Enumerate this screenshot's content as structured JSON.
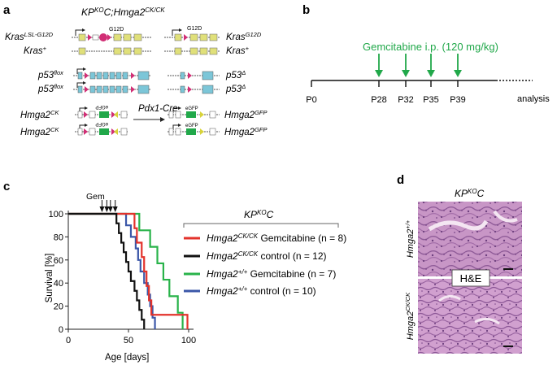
{
  "panels": {
    "a": {
      "letter": "a",
      "title_base": "KP",
      "title_sup1": "KO",
      "title_mid": "C;Hmga2",
      "title_sup2": "CK/CK",
      "kras_lsl_base": "Kras",
      "kras_lsl_sup": "LSL-G12D",
      "kras_plus_base": "Kras",
      "kras_plus_sup": "+",
      "g12d_label": "G12D",
      "kras_g12d_base": "Kras",
      "kras_g12d_sup": "G12D",
      "p53flox_base": "p53",
      "p53flox_sup": "flox",
      "p53delta_base": "p53",
      "p53delta_sup": "Δ",
      "hmga2ck_base": "Hmga2",
      "hmga2ck_sup": "CK",
      "hmga2gfp_base": "Hmga2",
      "hmga2gfp_sup": "GFP",
      "egfp_label": "eGFP",
      "cre_label": "Pdx1-Cre"
    },
    "b": {
      "letter": "b",
      "drug_label": "Gemcitabine i.p. (120 mg/kg)",
      "timepoints": [
        "P0",
        "P28",
        "P32",
        "P35",
        "P39"
      ],
      "end_label": "analysis",
      "arrow_color": "#21a84a"
    },
    "c": {
      "letter": "c",
      "gem_label": "Gem",
      "legend_title_base": "KP",
      "legend_title_sup": "KO",
      "legend_title_end": "C",
      "legend": [
        {
          "gene": "Hmga2",
          "sup": "CK/CK",
          "rest": " Gemcitabine (n = 8)",
          "color": "#e3322b"
        },
        {
          "gene": "Hmga2",
          "sup": "CK/CK",
          "rest": " control (n = 12)",
          "color": "#111111"
        },
        {
          "gene": "Hmga2",
          "sup": "+/+",
          "rest": " Gemcitabine (n = 7)",
          "color": "#29b34a"
        },
        {
          "gene": "Hmga2",
          "sup": "+/+",
          "rest": " control (n = 10)",
          "color": "#3b57a8"
        }
      ]
    },
    "d": {
      "letter": "d",
      "title_base": "KP",
      "title_sup": "KO",
      "title_end": "C",
      "top_label_base": "Hmga2",
      "top_label_sup": "+/+",
      "bottom_label_base": "Hmga2",
      "bottom_label_sup": "CK/CK",
      "stain_label": "H&E"
    }
  },
  "chart_data": {
    "type": "line",
    "step": true,
    "xlabel": "Age [days]",
    "ylabel": "Survival [%]",
    "xlim": [
      0,
      100
    ],
    "ylim": [
      0,
      100
    ],
    "xticks": [
      0,
      50,
      100
    ],
    "yticks": [
      0,
      20,
      40,
      60,
      80,
      100
    ],
    "gem_days": [
      28,
      32,
      35,
      39
    ],
    "series": [
      {
        "name": "Hmga2 CK/CK Gemcitabine (n = 8)",
        "color": "#e3322b",
        "x": [
          0,
          55,
          57,
          61,
          63,
          65,
          67,
          69,
          77,
          97,
          99
        ],
        "y": [
          100,
          87.5,
          75,
          62.5,
          50,
          37.5,
          25,
          12.5,
          12.5,
          12.5,
          0
        ]
      },
      {
        "name": "Hmga2 CK/CK control (n = 12)",
        "color": "#111111",
        "x": [
          0,
          40,
          42,
          44,
          46,
          48,
          50,
          52,
          55,
          57,
          59,
          61,
          63
        ],
        "y": [
          100,
          91.7,
          83.3,
          75,
          66.7,
          58.3,
          50,
          41.7,
          33.3,
          25,
          16.7,
          8.3,
          0
        ]
      },
      {
        "name": "Hmga2 +/+ Gemcitabine (n = 7)",
        "color": "#29b34a",
        "x": [
          0,
          59,
          68,
          74,
          79,
          84,
          91,
          95
        ],
        "y": [
          100,
          85.7,
          71.4,
          57.1,
          42.9,
          28.6,
          14.3,
          0
        ]
      },
      {
        "name": "Hmga2 +/+ control (n = 10)",
        "color": "#3b57a8",
        "x": [
          0,
          48,
          52,
          56,
          58,
          60,
          63,
          66,
          68,
          70,
          72
        ],
        "y": [
          100,
          90,
          80,
          70,
          60,
          50,
          40,
          30,
          20,
          10,
          0
        ]
      }
    ]
  }
}
